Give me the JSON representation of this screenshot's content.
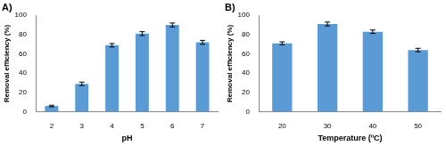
{
  "chart_data": [
    {
      "type": "bar",
      "title": "A)",
      "categories": [
        "2",
        "3",
        "4",
        "5",
        "6",
        "7"
      ],
      "values": [
        6,
        29,
        69,
        81,
        90,
        72
      ],
      "errors": [
        0.8,
        1.8,
        1.8,
        2,
        2,
        2
      ],
      "color": "#5b9bd5",
      "x_label": "pH",
      "y_label": "Removal efficiency (%)",
      "ylim": [
        0,
        100
      ],
      "yticks": [
        0,
        20,
        40,
        60,
        80,
        100
      ],
      "grid": false
    },
    {
      "type": "bar",
      "title": "B)",
      "categories": [
        "20",
        "30",
        "40",
        "50"
      ],
      "values": [
        71,
        91,
        83,
        64
      ],
      "errors": [
        1.5,
        2,
        1.8,
        1.8
      ],
      "color": "#5b9bd5",
      "x_label": "Temperature (ºC)",
      "y_label": "Removal efficiency (%)",
      "ylim": [
        0,
        100
      ],
      "yticks": [
        0,
        20,
        40,
        60,
        80,
        100
      ],
      "grid": false
    }
  ]
}
